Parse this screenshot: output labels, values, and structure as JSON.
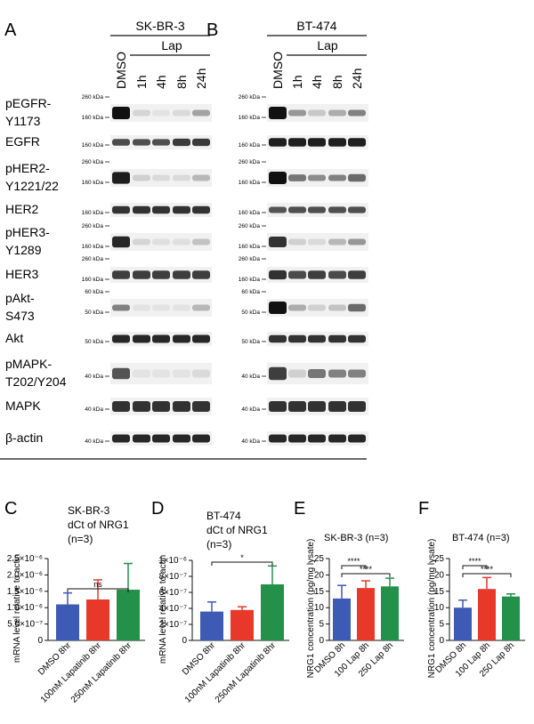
{
  "panel_letters": {
    "A": "A",
    "B": "B",
    "C": "C",
    "D": "D",
    "E": "E",
    "F": "F"
  },
  "blot": {
    "lanes": [
      "DMSO",
      "1h",
      "4h",
      "8h",
      "24h"
    ],
    "treatment_label": "Lap",
    "cell_lines": [
      "SK-BR-3",
      "BT-474"
    ],
    "proteins": [
      {
        "label": [
          "pEGFR-",
          "Y1173"
        ],
        "markers": [
          "260 kDa",
          "160 kDa"
        ],
        "sk": [
          1.0,
          0.12,
          0.05,
          0.1,
          0.35
        ],
        "bt": [
          1.0,
          0.4,
          0.18,
          0.3,
          0.5
        ]
      },
      {
        "label": [
          "EGFR"
        ],
        "markers": [
          "160 kDa"
        ],
        "sk": [
          0.75,
          0.72,
          0.72,
          0.82,
          0.82
        ],
        "bt": [
          0.95,
          0.95,
          0.95,
          0.95,
          0.95
        ]
      },
      {
        "label": [
          "pHER2-",
          "Y1221/22"
        ],
        "markers": [
          "260 kDa",
          "160 kDa"
        ],
        "sk": [
          0.95,
          0.15,
          0.1,
          0.1,
          0.25
        ],
        "bt": [
          1.0,
          0.55,
          0.45,
          0.5,
          0.6
        ]
      },
      {
        "label": [
          "HER2"
        ],
        "markers": [
          "160 kDa"
        ],
        "sk": [
          0.85,
          0.85,
          0.85,
          0.85,
          0.85
        ],
        "bt": [
          0.7,
          0.72,
          0.72,
          0.72,
          0.72
        ]
      },
      {
        "label": [
          "pHER3-",
          "Y1289"
        ],
        "markers": [
          "260 kDa",
          "160 kDa"
        ],
        "sk": [
          0.9,
          0.12,
          0.08,
          0.08,
          0.2
        ],
        "bt": [
          0.85,
          0.15,
          0.1,
          0.25,
          0.4
        ]
      },
      {
        "label": [
          "HER3"
        ],
        "markers": [
          "260 kDa",
          "160 kDa"
        ],
        "sk": [
          0.8,
          0.8,
          0.8,
          0.8,
          0.8
        ],
        "bt": [
          0.85,
          0.75,
          0.8,
          0.75,
          0.8
        ]
      },
      {
        "label": [
          "pAkt-",
          "S473"
        ],
        "markers": [
          "60 kDa",
          "50 kDa"
        ],
        "sk": [
          0.5,
          0.05,
          0.05,
          0.05,
          0.25
        ],
        "bt": [
          1.0,
          0.3,
          0.15,
          0.2,
          0.6
        ]
      },
      {
        "label": [
          "Akt"
        ],
        "markers": [
          "50 kDa"
        ],
        "sk": [
          0.9,
          0.9,
          0.9,
          0.9,
          0.9
        ],
        "bt": [
          0.85,
          0.85,
          0.85,
          0.85,
          0.85
        ]
      },
      {
        "label": [
          "pMAPK-",
          "T202/Y204"
        ],
        "markers": [
          "40 kDa"
        ],
        "sk": [
          0.7,
          0.05,
          0.05,
          0.05,
          0.1
        ],
        "bt": [
          0.8,
          0.15,
          0.55,
          0.5,
          0.5
        ]
      },
      {
        "label": [
          "MAPK"
        ],
        "markers": [
          "40 kDa"
        ],
        "sk": [
          0.85,
          0.85,
          0.85,
          0.85,
          0.85
        ],
        "bt": [
          0.85,
          0.85,
          0.85,
          0.85,
          0.85
        ]
      },
      {
        "label": [
          "β-actin"
        ],
        "markers": [
          "40 kDa"
        ],
        "sk": [
          0.9,
          0.9,
          0.9,
          0.9,
          0.9
        ],
        "bt": [
          0.9,
          0.9,
          0.9,
          0.9,
          0.9
        ]
      }
    ]
  },
  "chart_data": [
    {
      "type": "bar",
      "panel": "C",
      "title": [
        "SK-BR-3",
        "dCt of NRG1",
        "(n=3)"
      ],
      "ylabel": "mRNA level relative to actin",
      "categories": [
        "DMSO 8hr",
        "100nM Lapatinib 8hr",
        "250nM Lapatinib 8hr"
      ],
      "values": [
        1.1e-06,
        1.25e-06,
        1.55e-06
      ],
      "errors": [
        3.5e-07,
        6e-07,
        8e-07
      ],
      "ylim": [
        0,
        2.5e-06
      ],
      "yticks": [
        "0",
        "5.0×10⁻⁷",
        "1.0×10⁻⁶",
        "1.5×10⁻⁶",
        "2.0×10⁻⁶",
        "2.5×10⁻⁶"
      ],
      "ytick_values": [
        0,
        5e-07,
        1e-06,
        1.5e-06,
        2e-06,
        2.5e-06
      ],
      "colors": [
        "#3d5bb5",
        "#e8382a",
        "#23914a"
      ],
      "significance": [
        {
          "from": 0,
          "to": 2,
          "label": "ns"
        }
      ]
    },
    {
      "type": "bar",
      "panel": "D",
      "title": [
        "BT-474",
        "dCt of NRG1",
        "(n=3)"
      ],
      "ylabel": "mRNA level relative to actin",
      "categories": [
        "DMSO 8hr",
        "100nM Lapatinib 8hr",
        "250nM Lapatinib 8hr"
      ],
      "values": [
        3.6e-07,
        3.8e-07,
        7e-07
      ],
      "errors": [
        1.2e-07,
        4e-08,
        2.3e-07
      ],
      "ylim": [
        0,
        1e-06
      ],
      "yticks": [
        "0",
        "2×10⁻⁷",
        "4×10⁻⁷",
        "6×10⁻⁷",
        "8×10⁻⁷",
        "1×10⁻⁶"
      ],
      "ytick_values": [
        0,
        2e-07,
        4e-07,
        6e-07,
        8e-07,
        1e-06
      ],
      "colors": [
        "#3d5bb5",
        "#e8382a",
        "#23914a"
      ],
      "significance": [
        {
          "from": 0,
          "to": 2,
          "label": "*"
        }
      ]
    },
    {
      "type": "bar",
      "panel": "E",
      "title": [
        "SK-BR-3 (n=3)"
      ],
      "ylabel": "NRG1 concentration (pg/mg lysate)",
      "categories": [
        "DMSO 8h",
        "100 Lap 8h",
        "250 Lap 8h"
      ],
      "values": [
        12.8,
        16.0,
        16.5
      ],
      "errors": [
        4.0,
        2.2,
        2.5
      ],
      "ylim": [
        0,
        25
      ],
      "yticks": [
        "0",
        "5",
        "10",
        "15",
        "20",
        "25"
      ],
      "ytick_values": [
        0,
        5,
        10,
        15,
        20,
        25
      ],
      "colors": [
        "#3d5bb5",
        "#e8382a",
        "#23914a"
      ],
      "significance": [
        {
          "from": 0,
          "to": 1,
          "label": "****"
        },
        {
          "from": 0,
          "to": 2,
          "label": "****"
        }
      ]
    },
    {
      "type": "bar",
      "panel": "F",
      "title": [
        "BT-474 (n=3)"
      ],
      "ylabel": "NRG1 concentration (pg/mg lysate)",
      "categories": [
        "DMSO 8h",
        "100 Lap 8h",
        "250 Lap 8h"
      ],
      "values": [
        10.0,
        15.7,
        13.4
      ],
      "errors": [
        2.3,
        3.5,
        0.8
      ],
      "ylim": [
        0,
        25
      ],
      "yticks": [
        "0",
        "5",
        "10",
        "15",
        "20",
        "25"
      ],
      "ytick_values": [
        0,
        5,
        10,
        15,
        20,
        25
      ],
      "colors": [
        "#3d5bb5",
        "#e8382a",
        "#23914a"
      ],
      "significance": [
        {
          "from": 0,
          "to": 1,
          "label": "****"
        },
        {
          "from": 0,
          "to": 2,
          "label": "****"
        }
      ]
    }
  ]
}
